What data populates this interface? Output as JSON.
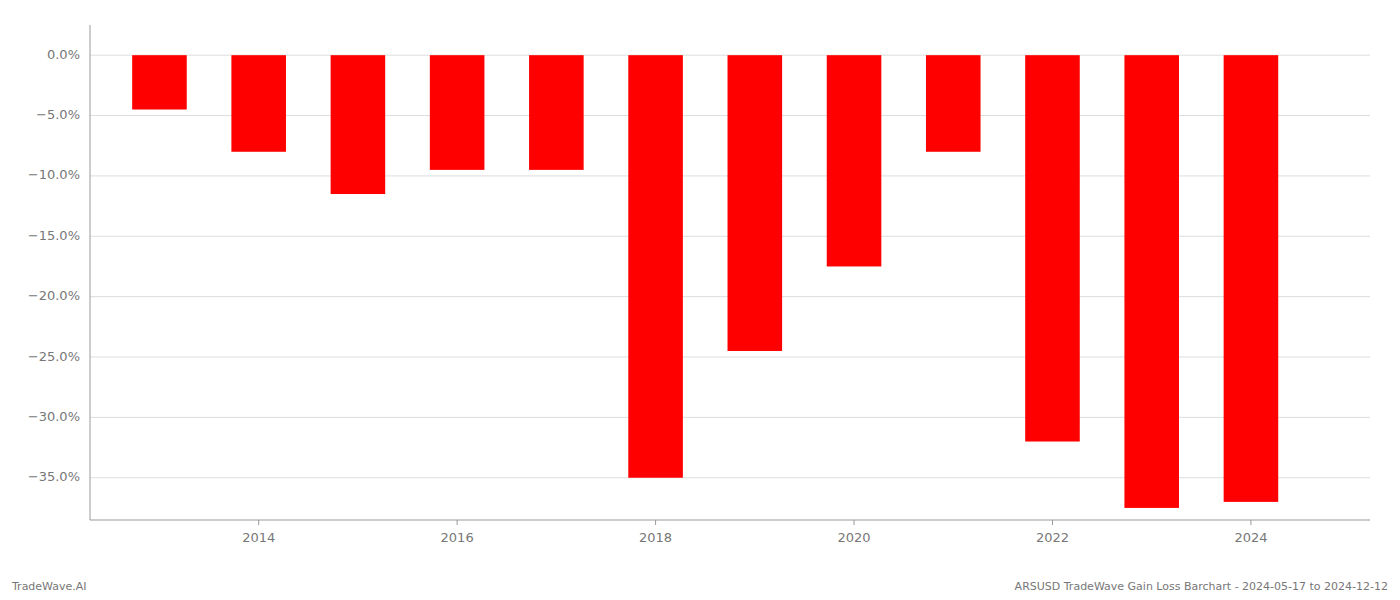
{
  "chart_data": {
    "type": "bar",
    "x": [
      2013,
      2014,
      2015,
      2016,
      2017,
      2018,
      2019,
      2020,
      2021,
      2022,
      2023,
      2024
    ],
    "values": [
      -4.5,
      -8.0,
      -11.5,
      -9.5,
      -9.5,
      -35.0,
      -24.5,
      -17.5,
      -8.0,
      -32.0,
      -37.5,
      -37.0
    ],
    "color": "#ff0000",
    "xlim": [
      2012.3,
      2025.2
    ],
    "xticks": [
      2014,
      2016,
      2018,
      2020,
      2022,
      2024
    ],
    "ylim": [
      -38.5,
      2.5
    ],
    "yticks": [
      {
        "value": 0.0,
        "label": "0.0%"
      },
      {
        "value": -5.0,
        "label": "−5.0%"
      },
      {
        "value": -10.0,
        "label": "−10.0%"
      },
      {
        "value": -15.0,
        "label": "−15.0%"
      },
      {
        "value": -20.0,
        "label": "−20.0%"
      },
      {
        "value": -25.0,
        "label": "−25.0%"
      },
      {
        "value": -30.0,
        "label": "−30.0%"
      },
      {
        "value": -35.0,
        "label": "−35.0%"
      }
    ],
    "grid": true,
    "annotations": [
      "TradeWave.AI",
      "ARSUSD TradeWave Gain Loss Barchart - 2024-05-17 to 2024-12-12"
    ]
  }
}
